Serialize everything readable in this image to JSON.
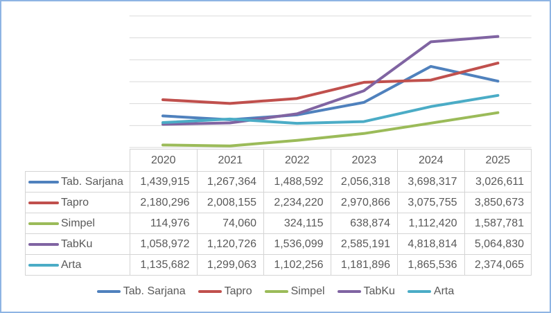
{
  "chart_data": {
    "type": "line",
    "title": "",
    "categories": [
      "2020",
      "2021",
      "2022",
      "2023",
      "2024",
      "2025"
    ],
    "series": [
      {
        "name": "Tab. Sarjana",
        "color": "#4F81BD",
        "values": [
          1439915,
          1267364,
          1488592,
          2056318,
          3698317,
          3026611
        ]
      },
      {
        "name": "Tapro",
        "color": "#C0504D",
        "values": [
          2180296,
          2008155,
          2234220,
          2970866,
          3075755,
          3850673
        ]
      },
      {
        "name": "Simpel",
        "color": "#9BBB59",
        "values": [
          114976,
          74060,
          324115,
          638874,
          1112420,
          1587781
        ]
      },
      {
        "name": "TabKu",
        "color": "#8064A2",
        "values": [
          1058972,
          1120726,
          1536099,
          2585191,
          4818814,
          5064830
        ]
      },
      {
        "name": "Arta",
        "color": "#4BACC6",
        "values": [
          1135682,
          1299063,
          1102256,
          1181896,
          1865536,
          2374065
        ]
      }
    ],
    "xlabel": "",
    "ylabel": "",
    "ylim": [
      0,
      6000000
    ],
    "gridline_interval": 1000000,
    "grid": "horizontal-only",
    "gridline_color": "#D9D9D9",
    "legend_position": "bottom",
    "has_data_table": true,
    "frame_border_color": "#8EB4E3",
    "text_color": "#595959",
    "table_border_color": "#D4D4D4"
  },
  "table": {
    "header": [
      "",
      "2020",
      "2021",
      "2022",
      "2023",
      "2024",
      "2025"
    ],
    "rows": [
      {
        "label": "Tab. Sarjana",
        "values": [
          "1,439,915",
          "1,267,364",
          "1,488,592",
          "2,056,318",
          "3,698,317",
          "3,026,611"
        ]
      },
      {
        "label": "Tapro",
        "values": [
          "2,180,296",
          "2,008,155",
          "2,234,220",
          "2,970,866",
          "3,075,755",
          "3,850,673"
        ]
      },
      {
        "label": "Simpel",
        "values": [
          "114,976",
          "74,060",
          "324,115",
          "638,874",
          "1,112,420",
          "1,587,781"
        ]
      },
      {
        "label": "TabKu",
        "values": [
          "1,058,972",
          "1,120,726",
          "1,536,099",
          "2,585,191",
          "4,818,814",
          "5,064,830"
        ]
      },
      {
        "label": "Arta",
        "values": [
          "1,135,682",
          "1,299,063",
          "1,102,256",
          "1,181,896",
          "1,865,536",
          "2,374,065"
        ]
      }
    ]
  },
  "legend": {
    "items": [
      "Tab. Sarjana",
      "Tapro",
      "Simpel",
      "TabKu",
      "Arta"
    ]
  }
}
